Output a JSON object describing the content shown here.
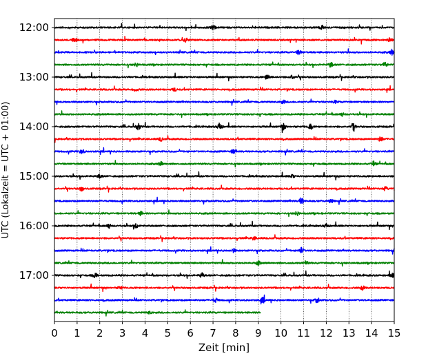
{
  "chart_data": {
    "type": "line",
    "title": "",
    "xlabel": "Zeit  [min]",
    "ylabel": "UTC (Lokalzeit = UTC + 01:00)",
    "xlim": [
      0,
      15
    ],
    "x_ticks": [
      0,
      1,
      2,
      3,
      4,
      5,
      6,
      7,
      8,
      9,
      10,
      11,
      12,
      13,
      14,
      15
    ],
    "x_grid": true,
    "y_tick_labels": [
      "12:00",
      "13:00",
      "14:00",
      "15:00",
      "16:00",
      "17:00"
    ],
    "trace_start_times": [
      "12:00",
      "12:15",
      "12:30",
      "12:45",
      "13:00",
      "13:15",
      "13:30",
      "13:45",
      "14:00",
      "14:15",
      "14:30",
      "14:45",
      "15:00",
      "15:15",
      "15:30",
      "15:45",
      "16:00",
      "16:15",
      "16:30",
      "16:45",
      "17:00",
      "17:15",
      "17:30",
      "17:45"
    ],
    "trace_colors": [
      "#000000",
      "#ff0000",
      "#0000ff",
      "#008000"
    ],
    "last_trace_end_min": 9.1,
    "events": [
      {
        "trace": 0,
        "t": 7.0,
        "amp": 0.7
      },
      {
        "trace": 0,
        "t": 11.8,
        "amp": 0.8
      },
      {
        "trace": 1,
        "t": 0.9,
        "amp": 0.9
      },
      {
        "trace": 1,
        "t": 5.8,
        "amp": 0.6
      },
      {
        "trace": 1,
        "t": 14.8,
        "amp": 0.8
      },
      {
        "trace": 2,
        "t": 10.8,
        "amp": 0.8
      },
      {
        "trace": 2,
        "t": 14.9,
        "amp": 0.9
      },
      {
        "trace": 3,
        "t": 3.6,
        "amp": 0.6
      },
      {
        "trace": 3,
        "t": 12.2,
        "amp": 0.8
      },
      {
        "trace": 3,
        "t": 14.6,
        "amp": 0.8
      },
      {
        "trace": 4,
        "t": 9.4,
        "amp": 1.0
      },
      {
        "trace": 4,
        "t": 10.5,
        "amp": 0.7
      },
      {
        "trace": 5,
        "t": 3.6,
        "amp": 0.6
      },
      {
        "trace": 5,
        "t": 5.3,
        "amp": 0.5
      },
      {
        "trace": 6,
        "t": 10.1,
        "amp": 0.5
      },
      {
        "trace": 6,
        "t": 12.4,
        "amp": 0.4
      },
      {
        "trace": 7,
        "t": 12.7,
        "amp": 0.5
      },
      {
        "trace": 8,
        "t": 3.7,
        "amp": 1.0
      },
      {
        "trace": 8,
        "t": 7.3,
        "amp": 1.3
      },
      {
        "trace": 8,
        "t": 10.1,
        "amp": 1.1
      },
      {
        "trace": 8,
        "t": 11.3,
        "amp": 1.0
      },
      {
        "trace": 8,
        "t": 13.2,
        "amp": 1.0
      },
      {
        "trace": 9,
        "t": 4.7,
        "amp": 0.6
      },
      {
        "trace": 9,
        "t": 14.4,
        "amp": 0.9
      },
      {
        "trace": 10,
        "t": 1.2,
        "amp": 0.9
      },
      {
        "trace": 10,
        "t": 7.9,
        "amp": 0.7
      },
      {
        "trace": 11,
        "t": 4.7,
        "amp": 0.6
      },
      {
        "trace": 11,
        "t": 14.1,
        "amp": 0.8
      },
      {
        "trace": 12,
        "t": 2.0,
        "amp": 0.6
      },
      {
        "trace": 12,
        "t": 10.5,
        "amp": 0.5
      },
      {
        "trace": 13,
        "t": 1.2,
        "amp": 0.8
      },
      {
        "trace": 13,
        "t": 14.6,
        "amp": 0.6
      },
      {
        "trace": 14,
        "t": 10.9,
        "amp": 1.1
      },
      {
        "trace": 14,
        "t": 12.2,
        "amp": 0.6
      },
      {
        "trace": 15,
        "t": 10.7,
        "amp": 0.7
      },
      {
        "trace": 15,
        "t": 3.8,
        "amp": 0.6
      },
      {
        "trace": 16,
        "t": 2.4,
        "amp": 0.7
      },
      {
        "trace": 16,
        "t": 3.6,
        "amp": 0.8
      },
      {
        "trace": 16,
        "t": 12.0,
        "amp": 0.7
      },
      {
        "trace": 17,
        "t": 8.8,
        "amp": 0.5
      },
      {
        "trace": 18,
        "t": 10.9,
        "amp": 1.0
      },
      {
        "trace": 18,
        "t": 7.9,
        "amp": 0.6
      },
      {
        "trace": 19,
        "t": 9.0,
        "amp": 0.6
      },
      {
        "trace": 19,
        "t": 11.1,
        "amp": 0.6
      },
      {
        "trace": 20,
        "t": 1.8,
        "amp": 0.8
      },
      {
        "trace": 20,
        "t": 6.5,
        "amp": 0.8
      },
      {
        "trace": 20,
        "t": 14.9,
        "amp": 0.7
      },
      {
        "trace": 21,
        "t": 13.6,
        "amp": 0.7
      },
      {
        "trace": 21,
        "t": 2.9,
        "amp": 0.5
      },
      {
        "trace": 22,
        "t": 9.2,
        "amp": 0.9
      },
      {
        "trace": 22,
        "t": 11.6,
        "amp": 0.8
      },
      {
        "trace": 22,
        "t": 7.1,
        "amp": 0.7
      },
      {
        "trace": 23,
        "t": 4.2,
        "amp": 0.4
      }
    ]
  }
}
